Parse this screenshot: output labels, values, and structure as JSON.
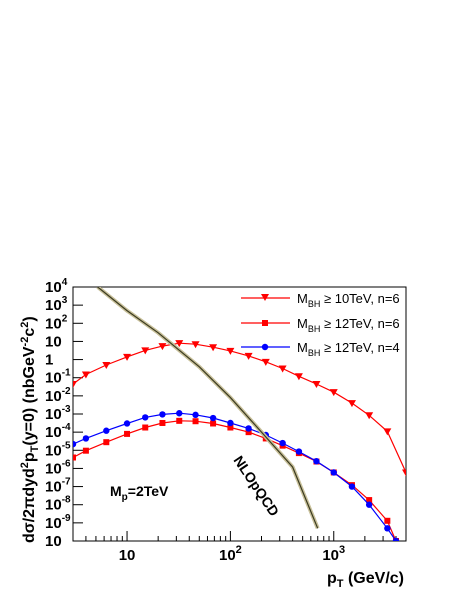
{
  "chart_data": {
    "type": "line",
    "title": "",
    "xlabel_main": "p",
    "xlabel_sub": "T",
    "xlabel_unit": " (GeV/c)",
    "ylabel_parts": {
      "a": "d",
      "b": "σ/2πdyd",
      "c": "2",
      "d": "p",
      "e": "T",
      "f": "(y=0) (nbGeV",
      "g": "-2",
      "h": "c",
      "i": "2",
      "j": ")"
    },
    "xscale": "log",
    "yscale": "log",
    "xlim": [
      3,
      5000
    ],
    "ylim": [
      1e-10,
      10000.0
    ],
    "x_tick_labels": [
      {
        "value": 10,
        "base": "10",
        "exp": ""
      },
      {
        "value": 100,
        "base": "10",
        "exp": "2"
      },
      {
        "value": 1000,
        "base": "10",
        "exp": "3"
      }
    ],
    "y_tick_labels": [
      {
        "value": 10000.0,
        "base": "10",
        "exp": "4"
      },
      {
        "value": 1000.0,
        "base": "10",
        "exp": "3"
      },
      {
        "value": 100.0,
        "base": "10",
        "exp": "2"
      },
      {
        "value": 10.0,
        "base": "10",
        "exp": ""
      },
      {
        "value": 1,
        "base": "1",
        "exp": ""
      },
      {
        "value": 0.1,
        "base": "10",
        "exp": "-1"
      },
      {
        "value": 0.01,
        "base": "10",
        "exp": "-2"
      },
      {
        "value": 0.001,
        "base": "10",
        "exp": "-3"
      },
      {
        "value": 0.0001,
        "base": "10",
        "exp": "-4"
      },
      {
        "value": 1e-05,
        "base": "10",
        "exp": "-5"
      },
      {
        "value": 1e-06,
        "base": "10",
        "exp": "-6"
      },
      {
        "value": 1e-07,
        "base": "10",
        "exp": "-7"
      },
      {
        "value": 1e-08,
        "base": "10",
        "exp": "-8"
      },
      {
        "value": 1e-09,
        "base": "10",
        "exp": "-9"
      },
      {
        "value": 1e-10,
        "base": "10",
        "exp": ""
      }
    ],
    "grid": false,
    "legend_position": "top-right",
    "series": [
      {
        "legend_m": "M",
        "legend_sub": "BH",
        "legend_rest": " ≥ 10TeV, n=6",
        "color": "#ff0000",
        "marker": "triangle-down",
        "x": [
          3,
          4,
          6.3,
          10,
          15,
          22,
          32,
          46,
          68,
          100,
          150,
          220,
          320,
          460,
          680,
          1000,
          1500,
          2200,
          3300,
          5000
        ],
        "y": [
          0.045,
          0.15,
          0.5,
          1.4,
          3.2,
          5.5,
          8.0,
          7.0,
          4.8,
          3.0,
          1.6,
          0.75,
          0.32,
          0.12,
          0.045,
          0.016,
          0.004,
          0.00085,
          0.00011,
          6e-07
        ]
      },
      {
        "legend_m": "M",
        "legend_sub": "BH",
        "legend_rest": " ≥ 12TeV, n=6",
        "color": "#ff0000",
        "marker": "square",
        "x": [
          3,
          4,
          6.3,
          10,
          15,
          22,
          32,
          46,
          68,
          100,
          150,
          220,
          320,
          460,
          680,
          1000,
          1500,
          2200,
          3300,
          4000
        ],
        "y": [
          4e-06,
          9.5e-06,
          2.8e-05,
          8e-05,
          0.00018,
          0.00032,
          0.00042,
          0.0004,
          0.0003,
          0.00018,
          0.0001,
          4.5e-05,
          1.8e-05,
          7e-06,
          2.4e-06,
          6e-07,
          1.2e-07,
          1.8e-08,
          1.3e-09,
          1e-10
        ]
      },
      {
        "legend_m": "M",
        "legend_sub": "BH",
        "legend_rest": " ≥ 12TeV, n=4",
        "color": "#0000ff",
        "marker": "circle",
        "x": [
          3,
          4,
          6.3,
          10,
          15,
          22,
          32,
          46,
          68,
          100,
          150,
          220,
          320,
          460,
          680,
          1000,
          1500,
          2200,
          3300,
          4000
        ],
        "y": [
          2.2e-05,
          4.5e-05,
          0.00012,
          0.0003,
          0.00065,
          0.00095,
          0.0011,
          0.0009,
          0.0006,
          0.00032,
          0.00016,
          7e-05,
          2.5e-05,
          8.5e-06,
          2.5e-06,
          6e-07,
          1e-07,
          1e-08,
          5e-10,
          1e-10
        ]
      },
      {
        "legend_m": "",
        "legend_sub": "",
        "legend_rest": "",
        "color": "#3a3a20",
        "marker": "none",
        "x": [
          5.2,
          10,
          20,
          50,
          100,
          200,
          400,
          700
        ],
        "y": [
          10000,
          500,
          30,
          0.4,
          0.008,
          0.0001,
          1.2e-06,
          5e-10
        ]
      }
    ],
    "annotations": {
      "mp_main": "M",
      "mp_sub": "p",
      "mp_rest": "=2TeV",
      "nlo": "NLOpQCD"
    }
  }
}
